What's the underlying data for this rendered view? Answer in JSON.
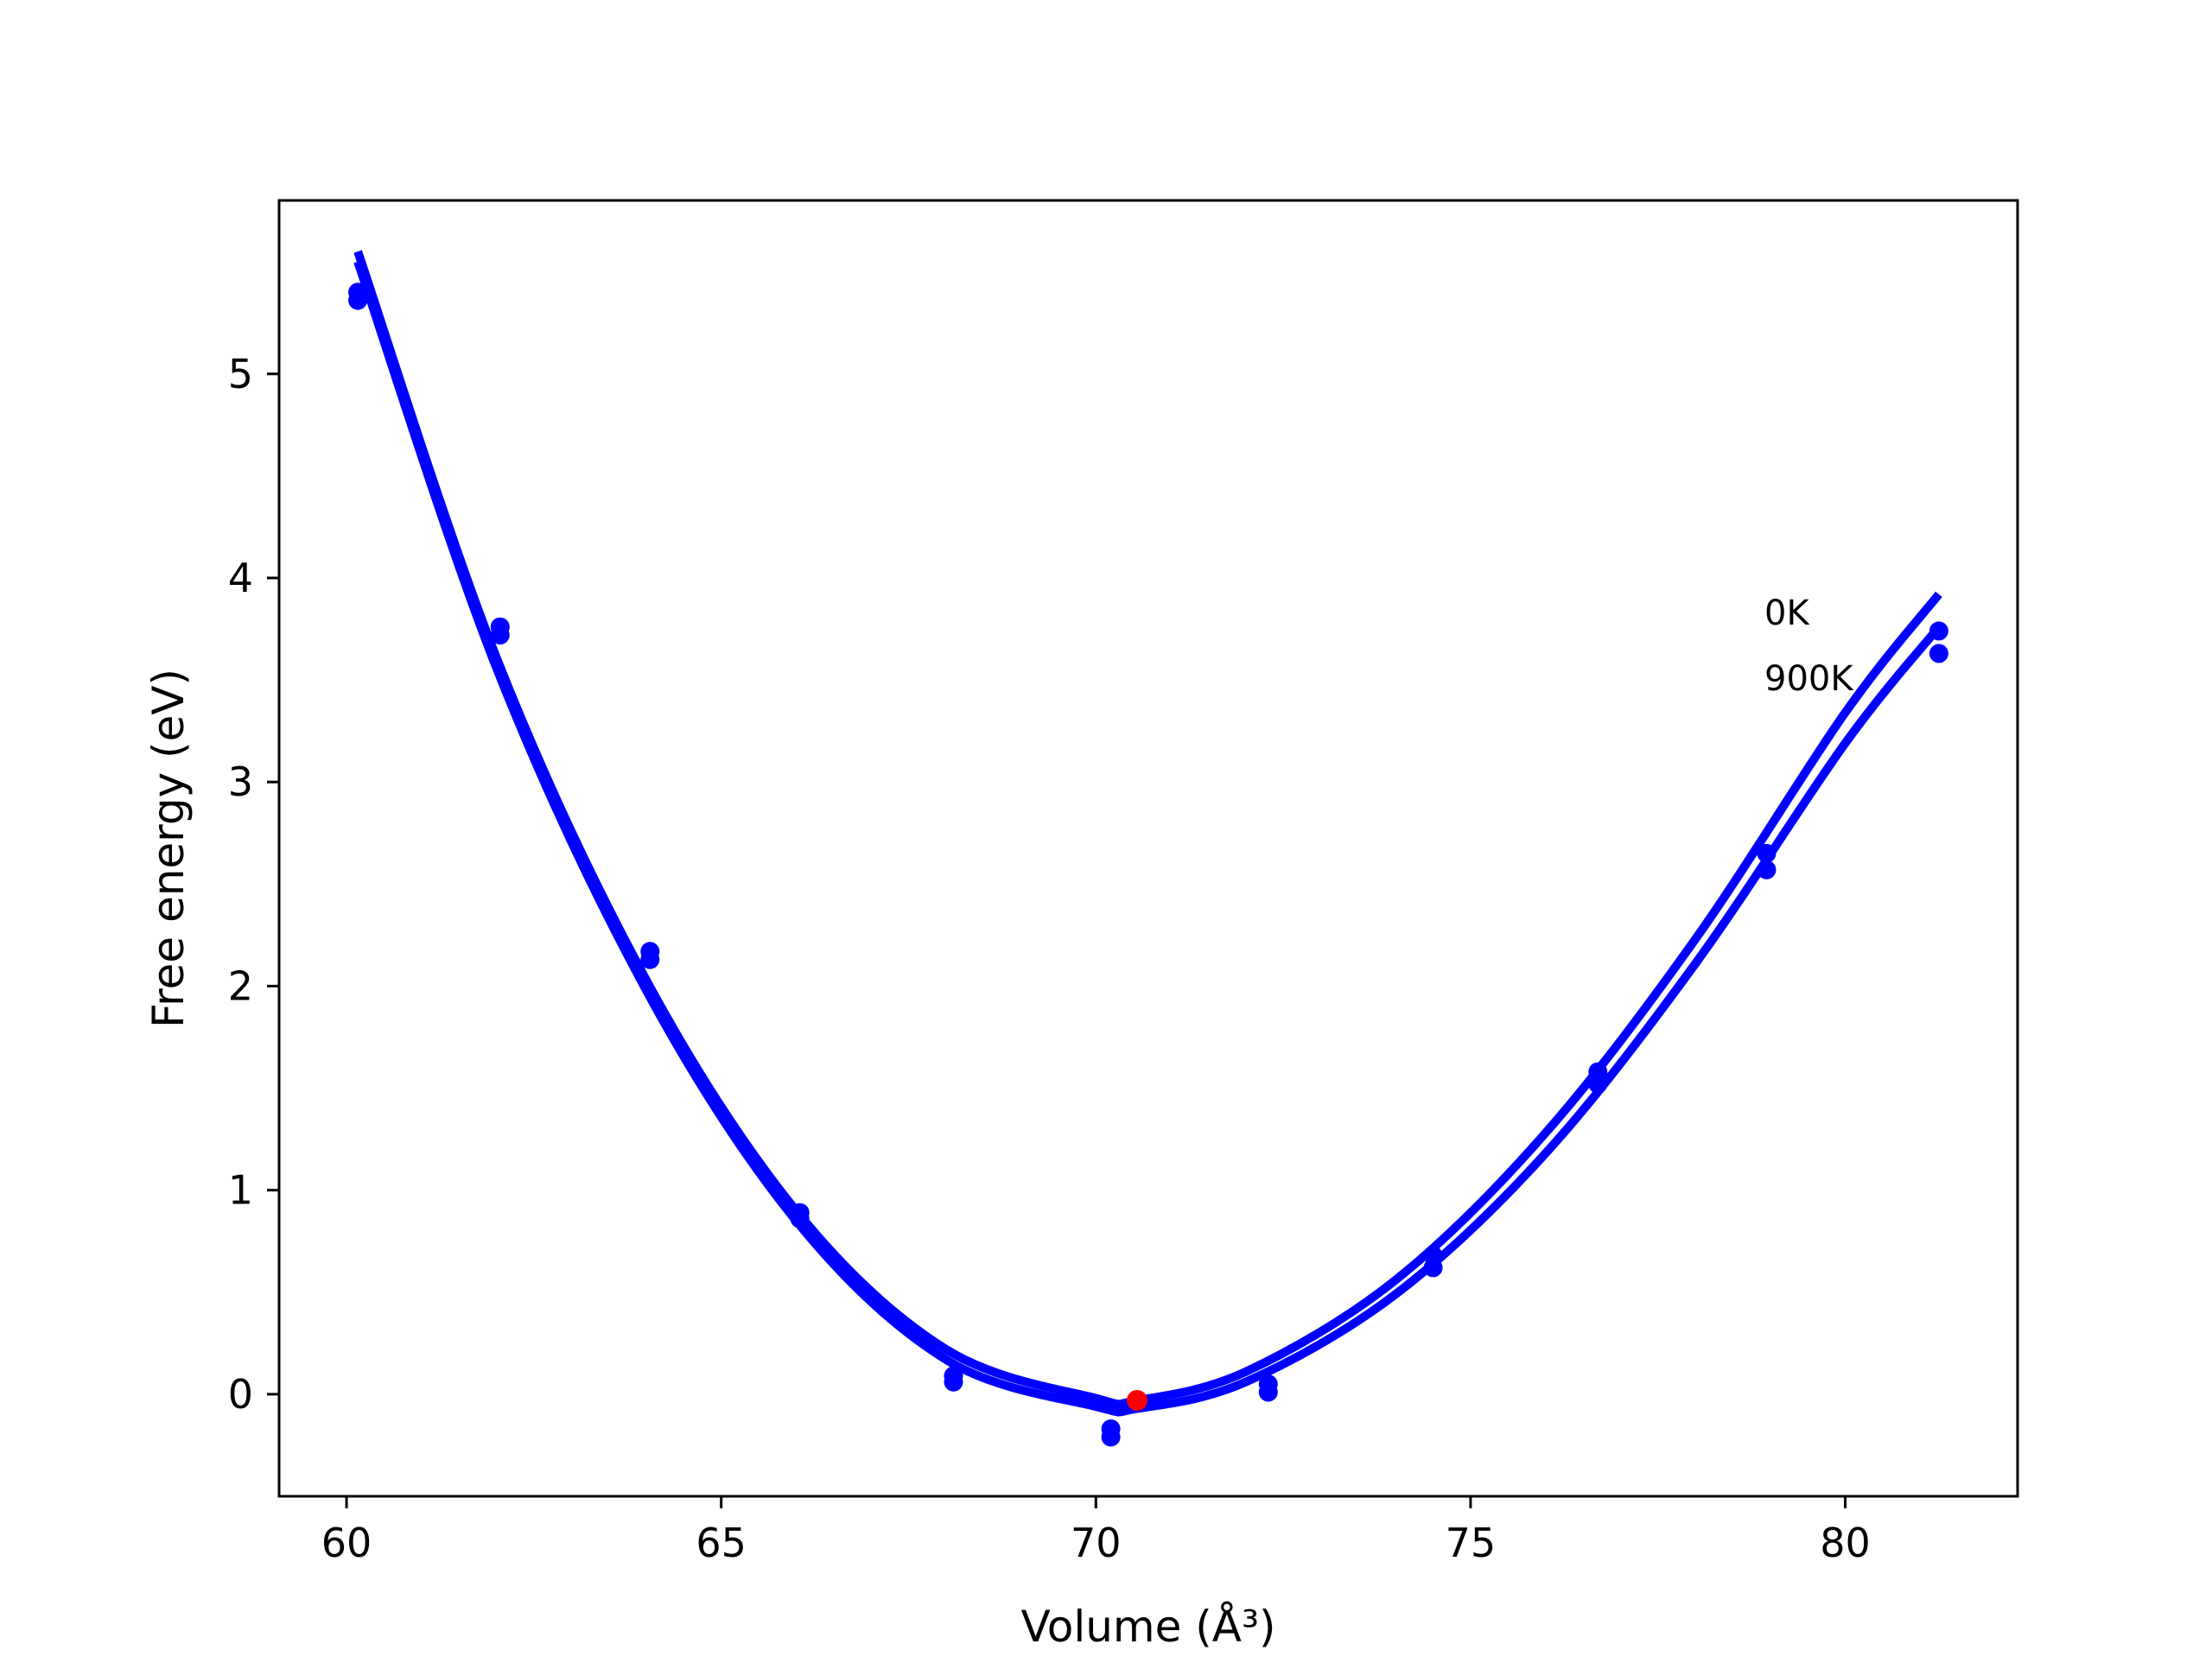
{
  "chart_data": {
    "type": "scatter",
    "title": "",
    "xlabel": "Volume (Å³)",
    "ylabel": "Free energy (eV)",
    "xlim": [
      59.1,
      82.3
    ],
    "ylim": [
      -0.5,
      5.85
    ],
    "xticks": [
      60,
      65,
      70,
      75,
      80
    ],
    "yticks": [
      0,
      1,
      2,
      3,
      4,
      5
    ],
    "grid": false,
    "legend": {
      "placement": "right",
      "entries": [
        "0K",
        "900K"
      ]
    },
    "colors": {
      "series": "#0000ff",
      "minimum": "#ff0000",
      "frame": "#000000"
    },
    "series": [
      {
        "name": "0K",
        "kind": "points",
        "x": [
          60.15,
          62.05,
          64.05,
          66.05,
          68.1,
          70.2,
          72.3,
          74.5,
          76.7,
          78.95,
          81.25
        ],
        "y": [
          5.4,
          3.76,
          2.17,
          0.89,
          0.09,
          -0.17,
          0.05,
          0.68,
          1.58,
          2.65,
          3.74
        ]
      },
      {
        "name": "900K",
        "kind": "points",
        "x": [
          60.15,
          62.05,
          64.05,
          66.05,
          68.1,
          70.2,
          72.3,
          74.5,
          76.7,
          78.95,
          81.25
        ],
        "y": [
          5.36,
          3.72,
          2.13,
          0.86,
          0.06,
          -0.21,
          0.01,
          0.62,
          1.52,
          2.57,
          3.63
        ]
      },
      {
        "name": "0K fit",
        "kind": "curve",
        "x": [
          60.15,
          62,
          64,
          66,
          68,
          70,
          70.55,
          72,
          74,
          76,
          78,
          80,
          81.25
        ],
        "y": [
          5.6,
          3.61,
          2.03,
          0.9,
          0.22,
          -0.02,
          -0.03,
          0.11,
          0.56,
          1.28,
          2.23,
          3.34,
          3.92
        ]
      },
      {
        "name": "900K fit",
        "kind": "curve",
        "x": [
          60.15,
          62,
          64,
          66,
          68,
          70,
          70.55,
          72,
          74,
          76,
          78,
          80,
          81.25
        ],
        "y": [
          5.55,
          3.56,
          1.98,
          0.85,
          0.17,
          -0.06,
          -0.07,
          0.06,
          0.49,
          1.18,
          2.11,
          3.19,
          3.76
        ]
      }
    ],
    "minimum": {
      "x": 70.55,
      "y": -0.03
    }
  }
}
